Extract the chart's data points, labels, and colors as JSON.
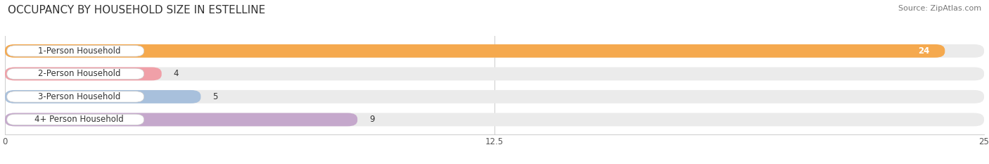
{
  "title": "OCCUPANCY BY HOUSEHOLD SIZE IN ESTELLINE",
  "source": "Source: ZipAtlas.com",
  "categories": [
    "1-Person Household",
    "2-Person Household",
    "3-Person Household",
    "4+ Person Household"
  ],
  "values": [
    24,
    4,
    5,
    9
  ],
  "bar_colors": [
    "#F5A94E",
    "#F0A0A8",
    "#A8C0DC",
    "#C5A8CC"
  ],
  "xlim": [
    0,
    25
  ],
  "xticks": [
    0,
    12.5,
    25
  ],
  "bg_color": "#ffffff",
  "bar_bg_color": "#ebebeb",
  "title_fontsize": 11,
  "source_fontsize": 8,
  "label_fontsize": 8.5,
  "value_fontsize": 8.5
}
